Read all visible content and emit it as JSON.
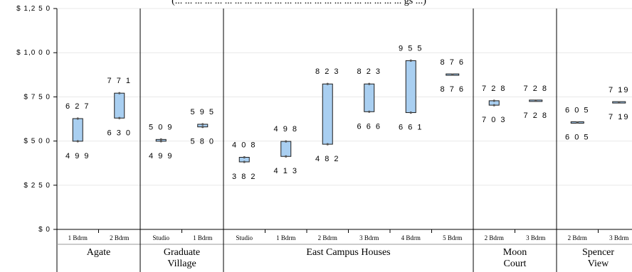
{
  "chart_data": {
    "type": "floating-bar",
    "title": "(... ... ... ... ... ... ... ... ... ... ... ... ... ... ... ... ... ... ... ... ... ... ... gs ...)",
    "ylim": [
      0,
      1250
    ],
    "yticks": [
      "$ 0",
      "$ 2 5 0",
      "$ 5 0 0",
      "$ 7 5 0",
      "$ 1,0 0 0",
      "$ 1,2 5 0"
    ],
    "ytick_values": [
      0,
      250,
      500,
      750,
      1000,
      1250
    ],
    "grid": true,
    "groups": [
      {
        "name_lines": [
          "Agate"
        ],
        "items": [
          {
            "category": "1 Bdrm",
            "low": 499,
            "high": 627,
            "low_label": "4 9 9",
            "high_label": "6 2 7"
          },
          {
            "category": "2 Bdrm",
            "low": 630,
            "high": 771,
            "low_label": "6 3 0",
            "high_label": "7 7 1"
          }
        ]
      },
      {
        "name_lines": [
          "Graduate",
          "Village"
        ],
        "items": [
          {
            "category": "Studio",
            "low": 499,
            "high": 509,
            "low_label": "4 9 9",
            "high_label": "5 0 9"
          },
          {
            "category": "1 Bdrm",
            "low": 580,
            "high": 595,
            "low_label": "5 8 0",
            "high_label": "5 9 5"
          }
        ]
      },
      {
        "name_lines": [
          "East Campus Houses"
        ],
        "items": [
          {
            "category": "Studio",
            "low": 382,
            "high": 408,
            "low_label": "3 8 2",
            "high_label": "4 0 8"
          },
          {
            "category": "1 Bdrm",
            "low": 413,
            "high": 498,
            "low_label": "4 1 3",
            "high_label": "4 9 8"
          },
          {
            "category": "2 Bdrm",
            "low": 482,
            "high": 823,
            "low_label": "4 8 2",
            "high_label": "8 2 3"
          },
          {
            "category": "3 Bdrm",
            "low": 666,
            "high": 823,
            "low_label": "6 6 6",
            "high_label": "8 2 3"
          },
          {
            "category": "4 Bdrm",
            "low": 661,
            "high": 955,
            "low_label": "6 6 1",
            "high_label": "9 5 5"
          },
          {
            "category": "5 Bdrm",
            "low": 876,
            "high": 876,
            "low_label": "8 7 6",
            "high_label": "8 7 6"
          }
        ]
      },
      {
        "name_lines": [
          "Moon",
          "Court"
        ],
        "items": [
          {
            "category": "2 Bdrm",
            "low": 703,
            "high": 728,
            "low_label": "7 0 3",
            "high_label": "7 2 8"
          },
          {
            "category": "3 Bdrm",
            "low": 728,
            "high": 728,
            "low_label": "7 2 8",
            "high_label": "7 2 8"
          }
        ]
      },
      {
        "name_lines": [
          "Spencer",
          "View"
        ],
        "items": [
          {
            "category": "2 Bdrm",
            "low": 605,
            "high": 605,
            "low_label": "6 0 5",
            "high_label": "6 0 5"
          },
          {
            "category": "3 Bdrm",
            "low": 719,
            "high": 719,
            "low_label": "7 19",
            "high_label": "7 19"
          }
        ]
      }
    ],
    "colors": {
      "bar_fill": "#A9CFF1",
      "bar_stroke": "#1c1c1c",
      "grid": "#e8e8e8",
      "axis": "#000000"
    }
  }
}
